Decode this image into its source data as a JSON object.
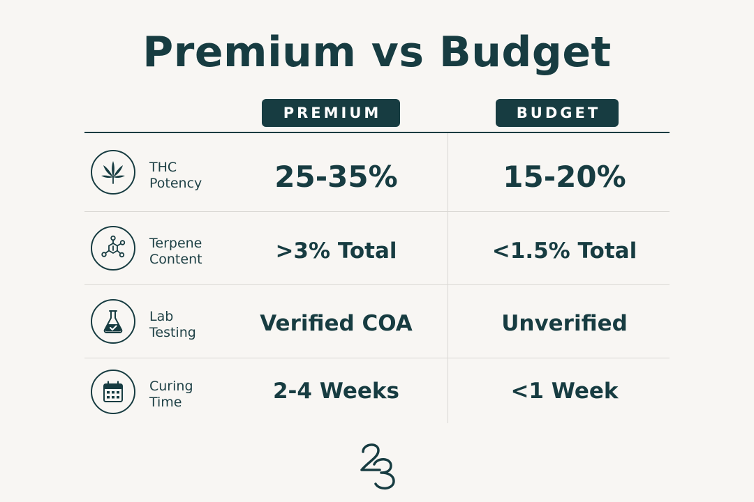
{
  "title": "Premium vs Budget",
  "columns": {
    "premium": "PREMIUM",
    "budget": "BUDGET"
  },
  "rows": [
    {
      "icon": "cannabis-leaf-icon",
      "label_line1": "THC",
      "label_line2": "Potency",
      "premium": "25-35%",
      "budget": "15-20%"
    },
    {
      "icon": "molecule-icon",
      "label_line1": "Terpene",
      "label_line2": "Content",
      "premium": ">3% Total",
      "budget": "<1.5% Total"
    },
    {
      "icon": "flask-icon",
      "label_line1": "Lab",
      "label_line2": "Testing",
      "premium": "Verified COA",
      "budget": "Unverified"
    },
    {
      "icon": "calendar-icon",
      "label_line1": "Curing",
      "label_line2": "Time",
      "premium": "2-4 Weeks",
      "budget": "<1 Week"
    }
  ],
  "colors": {
    "primary": "#173c41",
    "background": "#f8f6f3",
    "divider": "#d9d7d3"
  },
  "logo": {
    "icon": "23-monogram-logo"
  }
}
